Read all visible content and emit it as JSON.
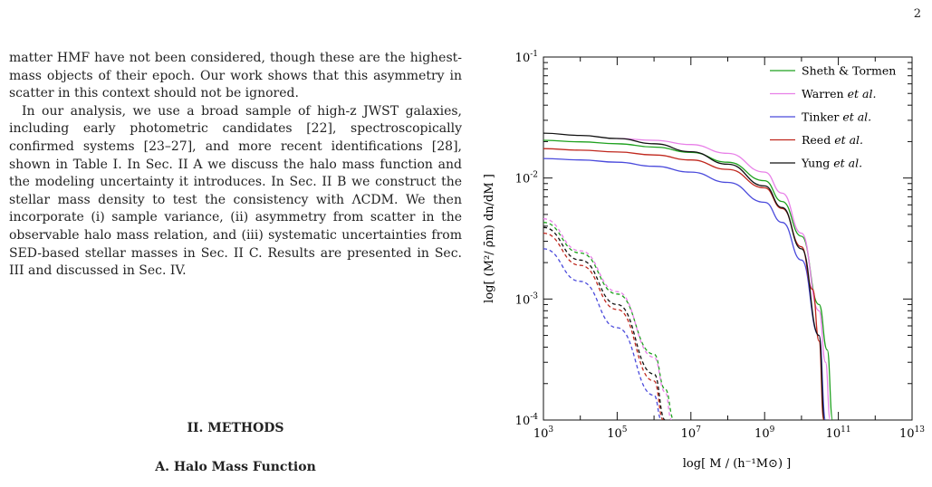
{
  "page": {
    "number": "2"
  },
  "body_text": {
    "p1": "matter HMF have not been considered, though these are the highest-mass objects of their epoch. Our work shows that this asymmetry in scatter in this context should not be ignored.",
    "p2": "In our analysis, we use a broad sample of high-z JWST galaxies, including early photometric candidates [22], spectroscopically confirmed systems [23–27], and more recent identifications [28], shown in Table I. In Sec. II A we discuss the halo mass function and the modeling uncertainty it introduces. In Sec. II B we construct the stellar mass density to test the consistency with ΛCDM. We then incorporate (i) sample variance, (ii) asymmetry from scatter in the observable halo mass relation, and (iii) systematic uncertainties from SED-based stellar masses in Sec. II C. Results are presented in Sec. III and discussed in Sec. IV."
  },
  "sections": {
    "methods": "II.    METHODS",
    "hmf": "A.    Halo Mass Function"
  },
  "chart_data": {
    "type": "line",
    "xscale": "log",
    "yscale": "log",
    "xlim": [
      1000,
      10000000000000
    ],
    "ylim": [
      0.0001,
      0.1
    ],
    "x_ticks": [
      "10^3",
      "10^5",
      "10^7",
      "10^9",
      "10^11",
      "10^13"
    ],
    "y_ticks": [
      "10^-4",
      "10^-3",
      "10^-2",
      "10^-1"
    ],
    "xlabel": "log[ M / (h⁻¹M⊙) ]",
    "ylabel": "log[ (M²/ ρ̄m) dn/dM ]",
    "legend_position": "top-right",
    "legend": [
      "Sheth & Tormen",
      "Warren et al.",
      "Tinker et al.",
      "Reed et al.",
      "Yung et al."
    ],
    "series": [
      {
        "name": "Sheth & Tormen",
        "color": "#1fa11f",
        "style": "solid",
        "x": [
          1000.0,
          10000.0,
          100000.0,
          1000000.0,
          10000000.0,
          100000000.0,
          1000000000.0,
          3000000000.0,
          10000000000.0,
          30000000000.0,
          50000000000.0,
          70000000000.0
        ],
        "y": [
          0.0205,
          0.0199,
          0.0192,
          0.018,
          0.0163,
          0.0135,
          0.0095,
          0.0064,
          0.0033,
          0.0009,
          0.00038,
          0.0001
        ]
      },
      {
        "name": "Warren et al.",
        "color": "#e880e8",
        "style": "solid",
        "x": [
          100000.0,
          1000000.0,
          10000000.0,
          100000000.0,
          1000000000.0,
          3000000000.0,
          10000000000.0,
          30000000000.0,
          45000000000.0,
          60000000000.0
        ],
        "y": [
          0.0212,
          0.0205,
          0.0189,
          0.016,
          0.0112,
          0.0075,
          0.0035,
          0.0008,
          0.0003,
          0.0001
        ]
      },
      {
        "name": "Tinker et al.",
        "color": "#4b4bdc",
        "style": "solid",
        "x": [
          1000.0,
          10000.0,
          100000.0,
          1000000.0,
          10000000.0,
          100000000.0,
          1000000000.0,
          3000000000.0,
          10000000000.0,
          30000000000.0,
          45000000000.0
        ],
        "y": [
          0.0145,
          0.0141,
          0.0135,
          0.0125,
          0.0112,
          0.0092,
          0.0063,
          0.0043,
          0.0021,
          0.0005,
          0.0001
        ]
      },
      {
        "name": "Reed et al.",
        "color": "#c0281e",
        "style": "solid",
        "x": [
          1000.0,
          10000.0,
          100000.0,
          1000000.0,
          10000000.0,
          100000000.0,
          1000000000.0,
          3000000000.0,
          10000000000.0,
          20000000000.0,
          30000000000.0,
          40000000000.0
        ],
        "y": [
          0.0175,
          0.017,
          0.0164,
          0.0155,
          0.0141,
          0.0118,
          0.0083,
          0.0056,
          0.0027,
          0.0012,
          0.00045,
          0.0001
        ]
      },
      {
        "name": "Yung et al.",
        "color": "#111111",
        "style": "solid",
        "x": [
          1000.0,
          10000.0,
          100000.0,
          1000000.0,
          10000000.0,
          100000000.0,
          1000000000.0,
          3000000000.0,
          10000000000.0,
          30000000000.0,
          42000000000.0
        ],
        "y": [
          0.0235,
          0.0225,
          0.0212,
          0.0192,
          0.0165,
          0.013,
          0.0086,
          0.0057,
          0.0026,
          0.0005,
          0.0001
        ]
      },
      {
        "name": "Sheth & Tormen (dashed)",
        "color": "#1fa11f",
        "style": "dashed",
        "x": [
          1000.0,
          10000.0,
          100000.0,
          1000000.0,
          2000000.0,
          3500000.0
        ],
        "y": [
          0.0043,
          0.0024,
          0.0011,
          0.00035,
          0.00018,
          0.0001
        ]
      },
      {
        "name": "Warren et al. (dashed)",
        "color": "#e880e8",
        "style": "dashed",
        "x": [
          1000.0,
          10000.0,
          100000.0,
          1000000.0,
          2000000.0,
          3000000.0
        ],
        "y": [
          0.0046,
          0.0025,
          0.00115,
          0.00033,
          0.00017,
          0.0001
        ]
      },
      {
        "name": "Tinker et al. (dashed)",
        "color": "#4b4bdc",
        "style": "dashed",
        "x": [
          1000.0,
          10000.0,
          100000.0,
          1000000.0,
          1600000.0
        ],
        "y": [
          0.0026,
          0.0014,
          0.00058,
          0.00016,
          0.0001
        ]
      },
      {
        "name": "Reed et al. (dashed)",
        "color": "#c0281e",
        "style": "dashed",
        "x": [
          1000.0,
          10000.0,
          100000.0,
          1000000.0,
          1800000.0
        ],
        "y": [
          0.0035,
          0.0019,
          0.00082,
          0.00021,
          0.0001
        ]
      },
      {
        "name": "Yung et al. (dashed)",
        "color": "#111111",
        "style": "dashed",
        "x": [
          1000.0,
          10000.0,
          100000.0,
          1000000.0,
          2000000.0
        ],
        "y": [
          0.0039,
          0.0021,
          0.0009,
          0.00024,
          0.0001
        ]
      }
    ]
  }
}
